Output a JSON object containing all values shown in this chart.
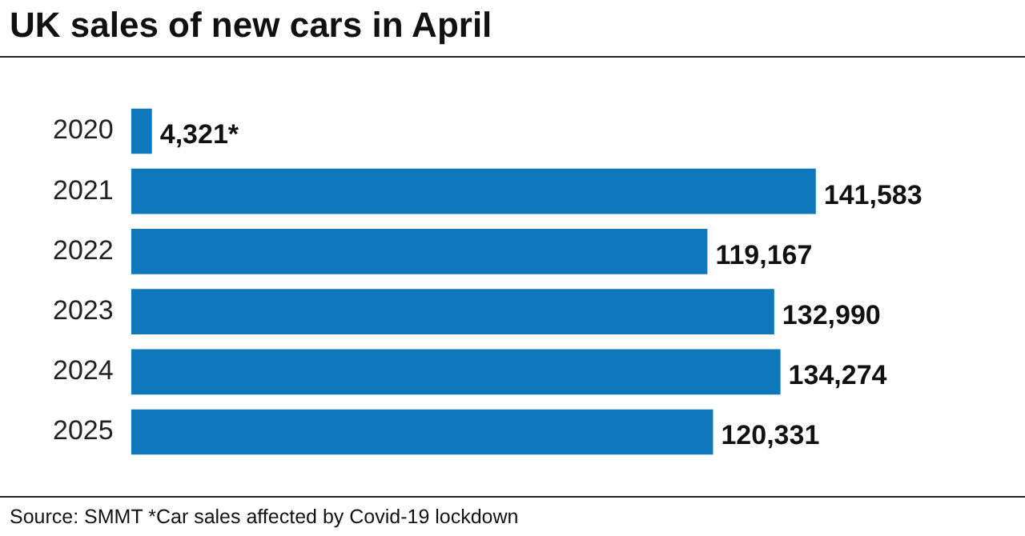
{
  "chart_data": {
    "type": "bar",
    "orientation": "horizontal",
    "title": "UK sales of new cars in April",
    "categories": [
      "2020",
      "2021",
      "2022",
      "2023",
      "2024",
      "2025"
    ],
    "values": [
      4321,
      141583,
      119167,
      132990,
      134274,
      120331
    ],
    "value_labels": [
      "4,321*",
      "141,583",
      "119,167",
      "132,990",
      "134,274",
      "120,331"
    ],
    "color": "#0f78bd",
    "legend": false,
    "tick_labels": "y",
    "annotations": [
      "Source: SMMT *Car sales affected by Covid-19 lockdown"
    ]
  }
}
